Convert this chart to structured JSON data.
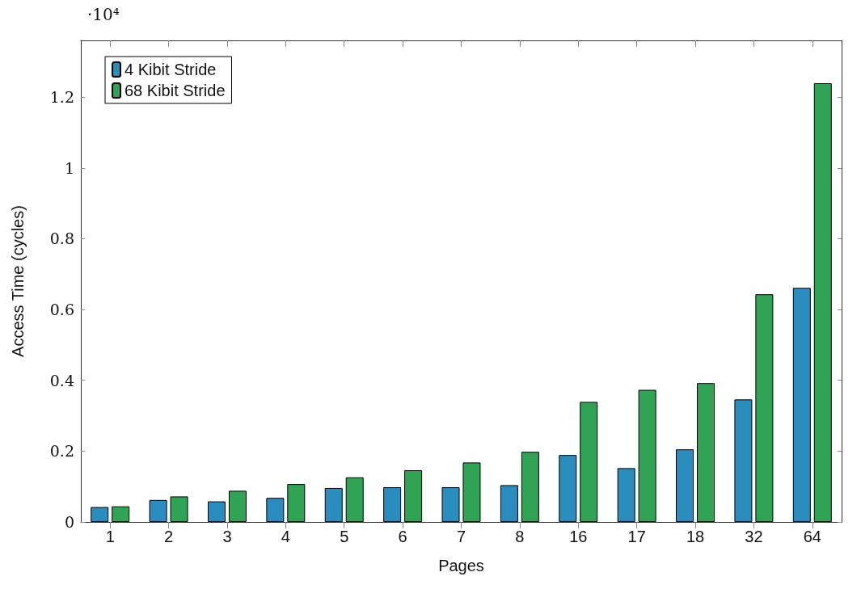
{
  "chart_data": {
    "type": "bar",
    "xlabel": "Pages",
    "ylabel": "Access Time (cycles)",
    "annotations": [
      "·10⁴"
    ],
    "categories": [
      "1",
      "2",
      "3",
      "4",
      "5",
      "6",
      "7",
      "8",
      "16",
      "17",
      "18",
      "32",
      "64"
    ],
    "series": [
      {
        "name": "4 Kibit Stride",
        "color": "#2b8cbe",
        "values": [
          0.042,
          0.062,
          0.058,
          0.068,
          0.096,
          0.098,
          0.098,
          0.104,
          0.189,
          0.152,
          0.205,
          0.346,
          0.661
        ]
      },
      {
        "name": "68 Kibit Stride",
        "color": "#31a354",
        "values": [
          0.044,
          0.072,
          0.088,
          0.107,
          0.126,
          0.146,
          0.168,
          0.198,
          0.339,
          0.373,
          0.392,
          0.643,
          1.239
        ]
      }
    ],
    "ylim": [
      0,
      1.36
    ],
    "yticks": [
      0,
      0.2,
      0.4,
      0.6,
      0.8,
      1,
      1.2
    ],
    "grid": false,
    "legend": "top left"
  }
}
